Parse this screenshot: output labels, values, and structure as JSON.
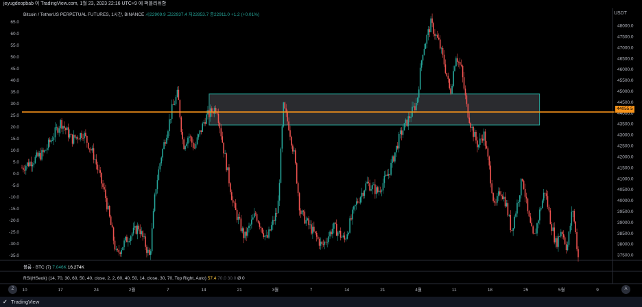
{
  "header": {
    "attribution": "jeyugdeopbab 이 TradingView.com, 1월 23, 2023 22:16 UTC+9 에 퍼블리쉬함"
  },
  "legend": {
    "symbol": "Bitcoin / TetherUS PERPETUAL FUTURES, 1시간, BINANCE",
    "o_label": "시",
    "o": "22909.9",
    "h_label": "고",
    "h": "22937.4",
    "l_label": "저",
    "l": "22853.7",
    "c_label": "종",
    "c": "22911.0",
    "change": "+1.2 (+0.01%)"
  },
  "price_axis_unit": "USDT",
  "current_price_tag": "44055.5",
  "volume_pane": {
    "label": "볼륨 · BTC (7)",
    "v1": "7.046K",
    "v2": "16.274K"
  },
  "rsi_pane": {
    "label": "RSI(HSeok) (14, 70, 30, 60, 50, 40, close, 2, 2, 60, 40, 50, 14, close, 30, 70, Top Right, Auto)",
    "value": "57.4",
    "v2": "70.0",
    "v3": "30.0",
    "v4": "Ø",
    "v5": "0"
  },
  "footer_logo": "TradingView",
  "badges": {
    "left": "Z",
    "right": "A"
  },
  "chart_data": {
    "type": "line",
    "left_axis": {
      "ticks": [
        65.0,
        60.0,
        55.0,
        50.0,
        45.0,
        40.0,
        35.0,
        30.0,
        25.0,
        20.0,
        15.0,
        10.0,
        5.0,
        0.0,
        -5.0,
        -10.0,
        -15.0,
        -20.0,
        -25.0,
        -30.0,
        -35.0
      ]
    },
    "right_axis": {
      "ticks": [
        48000.0,
        47500.0,
        47000.0,
        46500.0,
        46000.0,
        45500.0,
        45000.0,
        44500.0,
        44000.0,
        43500.0,
        43000.0,
        42500.0,
        42000.0,
        41500.0,
        41000.0,
        40500.0,
        40000.0,
        39500.0,
        39000.0,
        38500.0,
        38000.0,
        37500.0
      ],
      "range": [
        37300,
        48300
      ]
    },
    "x_axis": {
      "ticks": [
        "10",
        "17",
        "24",
        "2월",
        "7",
        "14",
        "21",
        "3월",
        "7",
        "14",
        "21",
        "4월",
        "11",
        "18",
        "25",
        "5월",
        "9"
      ]
    },
    "horizontal_line": {
      "price": 44055.5,
      "color": "#f7931a"
    },
    "zone": {
      "x_start": "14",
      "x_end": "25",
      "price_top": 44880,
      "price_bottom": 43460
    },
    "price_path": [
      {
        "x": 0,
        "p": 41500
      },
      {
        "x": 0.04,
        "p": 42200
      },
      {
        "x": 0.07,
        "p": 43600
      },
      {
        "x": 0.09,
        "p": 42800
      },
      {
        "x": 0.11,
        "p": 43100
      },
      {
        "x": 0.13,
        "p": 42000
      },
      {
        "x": 0.15,
        "p": 40200
      },
      {
        "x": 0.17,
        "p": 37500
      },
      {
        "x": 0.19,
        "p": 38300
      },
      {
        "x": 0.21,
        "p": 38800
      },
      {
        "x": 0.23,
        "p": 37400
      },
      {
        "x": 0.24,
        "p": 40500
      },
      {
        "x": 0.25,
        "p": 42000
      },
      {
        "x": 0.27,
        "p": 44200
      },
      {
        "x": 0.28,
        "p": 44900
      },
      {
        "x": 0.29,
        "p": 42500
      },
      {
        "x": 0.3,
        "p": 43000
      },
      {
        "x": 0.31,
        "p": 42400
      },
      {
        "x": 0.33,
        "p": 43800
      },
      {
        "x": 0.35,
        "p": 44300
      },
      {
        "x": 0.365,
        "p": 42000
      },
      {
        "x": 0.38,
        "p": 39800
      },
      {
        "x": 0.4,
        "p": 38300
      },
      {
        "x": 0.42,
        "p": 39400
      },
      {
        "x": 0.44,
        "p": 38200
      },
      {
        "x": 0.46,
        "p": 39600
      },
      {
        "x": 0.47,
        "p": 44300
      },
      {
        "x": 0.48,
        "p": 43400
      },
      {
        "x": 0.49,
        "p": 42000
      },
      {
        "x": 0.5,
        "p": 39500
      },
      {
        "x": 0.52,
        "p": 38700
      },
      {
        "x": 0.54,
        "p": 37900
      },
      {
        "x": 0.56,
        "p": 38800
      },
      {
        "x": 0.58,
        "p": 38200
      },
      {
        "x": 0.6,
        "p": 39800
      },
      {
        "x": 0.62,
        "p": 40800
      },
      {
        "x": 0.64,
        "p": 40400
      },
      {
        "x": 0.66,
        "p": 41300
      },
      {
        "x": 0.68,
        "p": 43000
      },
      {
        "x": 0.7,
        "p": 44000
      },
      {
        "x": 0.71,
        "p": 44500
      },
      {
        "x": 0.72,
        "p": 46800
      },
      {
        "x": 0.735,
        "p": 48100
      },
      {
        "x": 0.75,
        "p": 47200
      },
      {
        "x": 0.76,
        "p": 46200
      },
      {
        "x": 0.77,
        "p": 44900
      },
      {
        "x": 0.78,
        "p": 46700
      },
      {
        "x": 0.79,
        "p": 46000
      },
      {
        "x": 0.8,
        "p": 44200
      },
      {
        "x": 0.81,
        "p": 43200
      },
      {
        "x": 0.82,
        "p": 42500
      },
      {
        "x": 0.83,
        "p": 43100
      },
      {
        "x": 0.84,
        "p": 41500
      },
      {
        "x": 0.85,
        "p": 39600
      },
      {
        "x": 0.86,
        "p": 40500
      },
      {
        "x": 0.87,
        "p": 39900
      },
      {
        "x": 0.88,
        "p": 38600
      },
      {
        "x": 0.89,
        "p": 39800
      },
      {
        "x": 0.9,
        "p": 41100
      },
      {
        "x": 0.91,
        "p": 39300
      },
      {
        "x": 0.92,
        "p": 38200
      },
      {
        "x": 0.93,
        "p": 39400
      },
      {
        "x": 0.94,
        "p": 40500
      },
      {
        "x": 0.95,
        "p": 39100
      },
      {
        "x": 0.96,
        "p": 38000
      },
      {
        "x": 0.97,
        "p": 38700
      },
      {
        "x": 0.98,
        "p": 37800
      },
      {
        "x": 0.99,
        "p": 39700
      },
      {
        "x": 1.0,
        "p": 37400
      }
    ]
  }
}
